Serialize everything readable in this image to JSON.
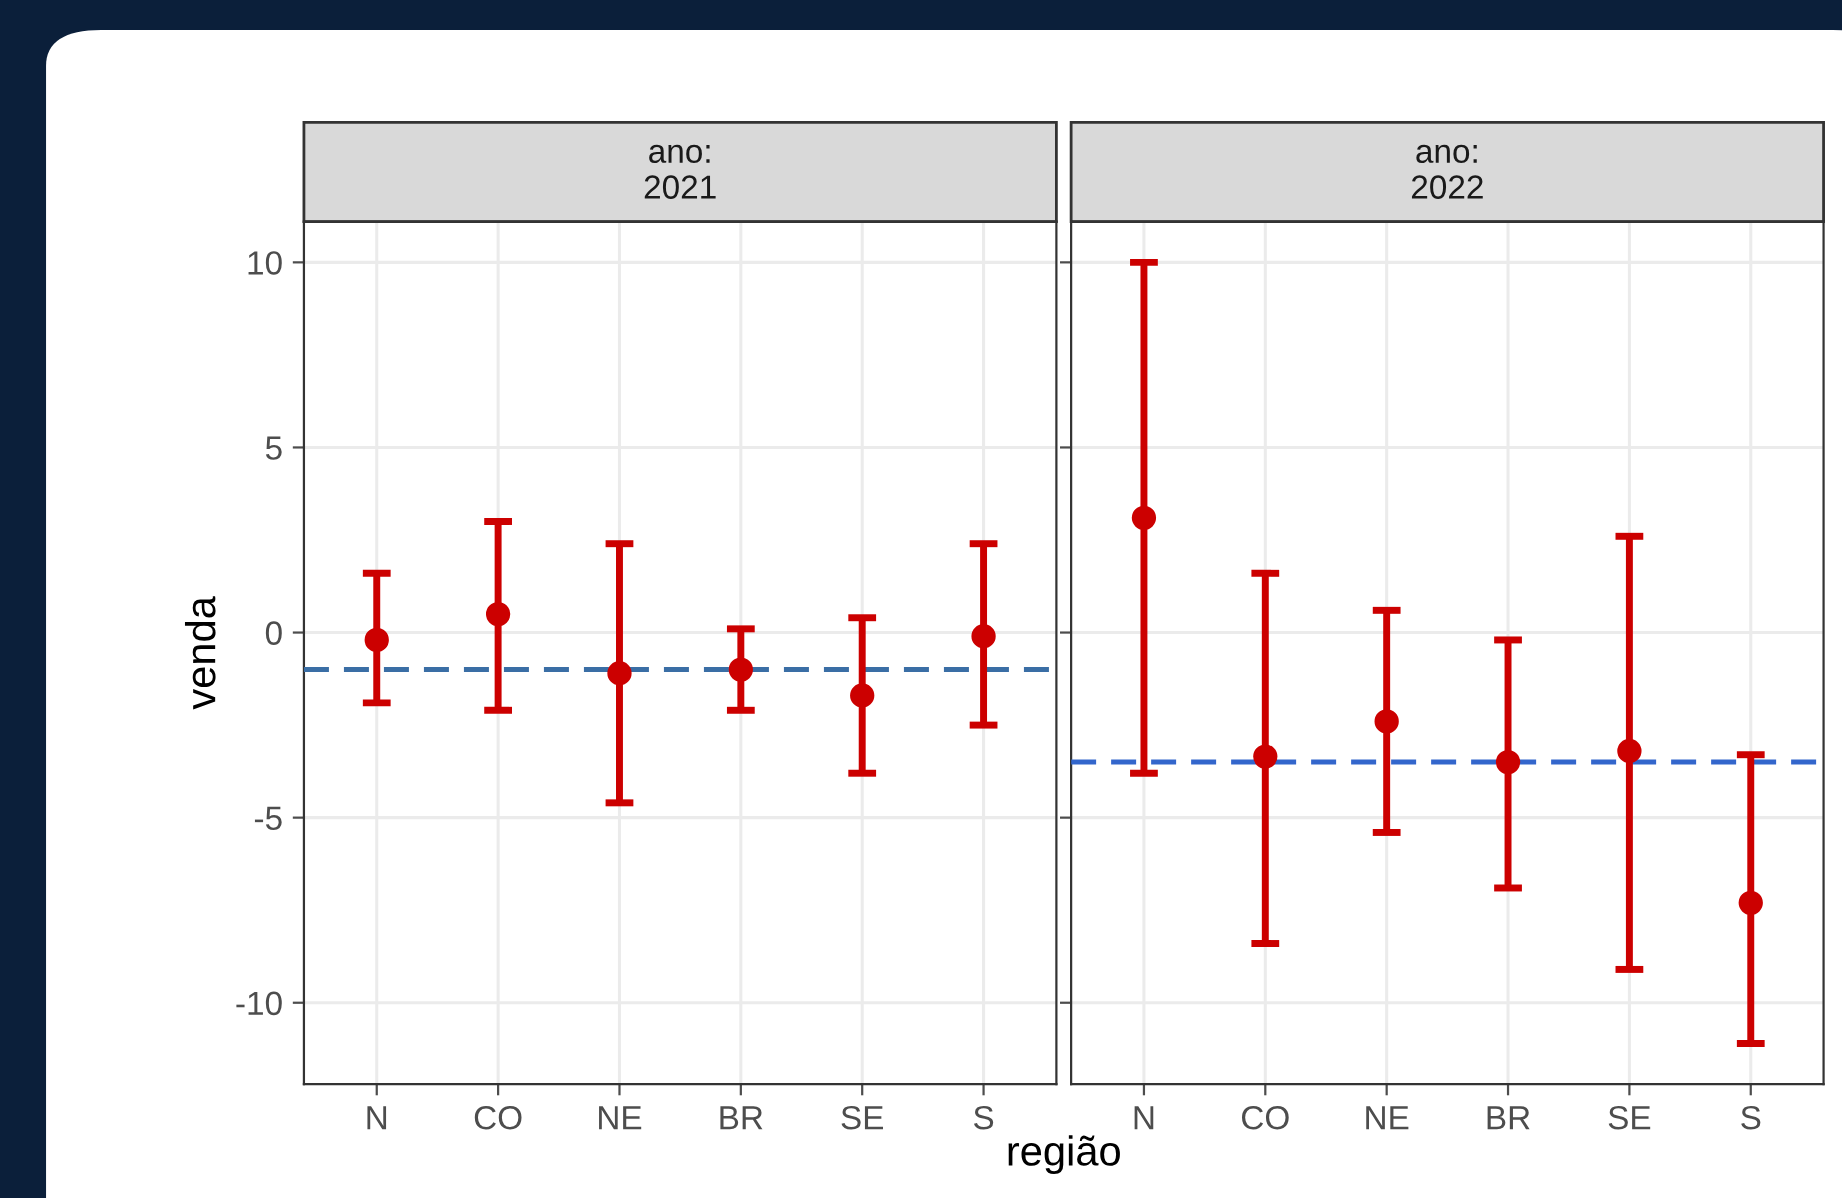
{
  "chart_data": [
    {
      "type": "scatter",
      "title": "ano:\n2021",
      "ylabel": "venda",
      "xlabel": "região",
      "categories": [
        "N",
        "CO",
        "NE",
        "BR",
        "SE",
        "S"
      ],
      "series": [
        {
          "color": "#cc0000",
          "values": [
            -0.2,
            0.5,
            -1.1,
            -1.0,
            -1.7,
            -0.1
          ],
          "errors": [
            [
              -1.9,
              1.6
            ],
            [
              -2.1,
              3.0
            ],
            [
              -4.6,
              2.4
            ],
            [
              -2.1,
              0.1
            ],
            [
              -3.8,
              0.4
            ],
            [
              -2.5,
              2.4
            ]
          ]
        }
      ],
      "ref_lines": [
        {
          "axis": "y",
          "value": -1.0,
          "color": "#3a6ea5",
          "line_style": "dashed"
        }
      ],
      "ylim": [
        -12.2,
        11.1
      ],
      "yticks": [
        -10,
        -5,
        0,
        5,
        10
      ],
      "grid": true,
      "marker": "circle"
    },
    {
      "type": "scatter",
      "title": "ano:\n2022",
      "categories": [
        "N",
        "CO",
        "NE",
        "BR",
        "SE",
        "S"
      ],
      "series": [
        {
          "color": "#cc0000",
          "values": [
            3.1,
            -3.35,
            -2.4,
            -3.5,
            -3.2,
            -7.3
          ],
          "errors": [
            [
              -3.8,
              10.0
            ],
            [
              -8.4,
              1.6
            ],
            [
              -5.4,
              0.6
            ],
            [
              -6.9,
              -0.2
            ],
            [
              -9.1,
              2.6
            ],
            [
              -11.1,
              -3.3
            ]
          ]
        }
      ],
      "ref_lines": [
        {
          "axis": "y",
          "value": -3.5,
          "color": "#3366cc",
          "line_style": "dashed"
        }
      ],
      "ylim": [
        -12.2,
        11.1
      ],
      "yticks": [
        -10,
        -5,
        0,
        5,
        10
      ],
      "grid": true,
      "marker": "circle",
      "tick_labels": "x"
    }
  ]
}
